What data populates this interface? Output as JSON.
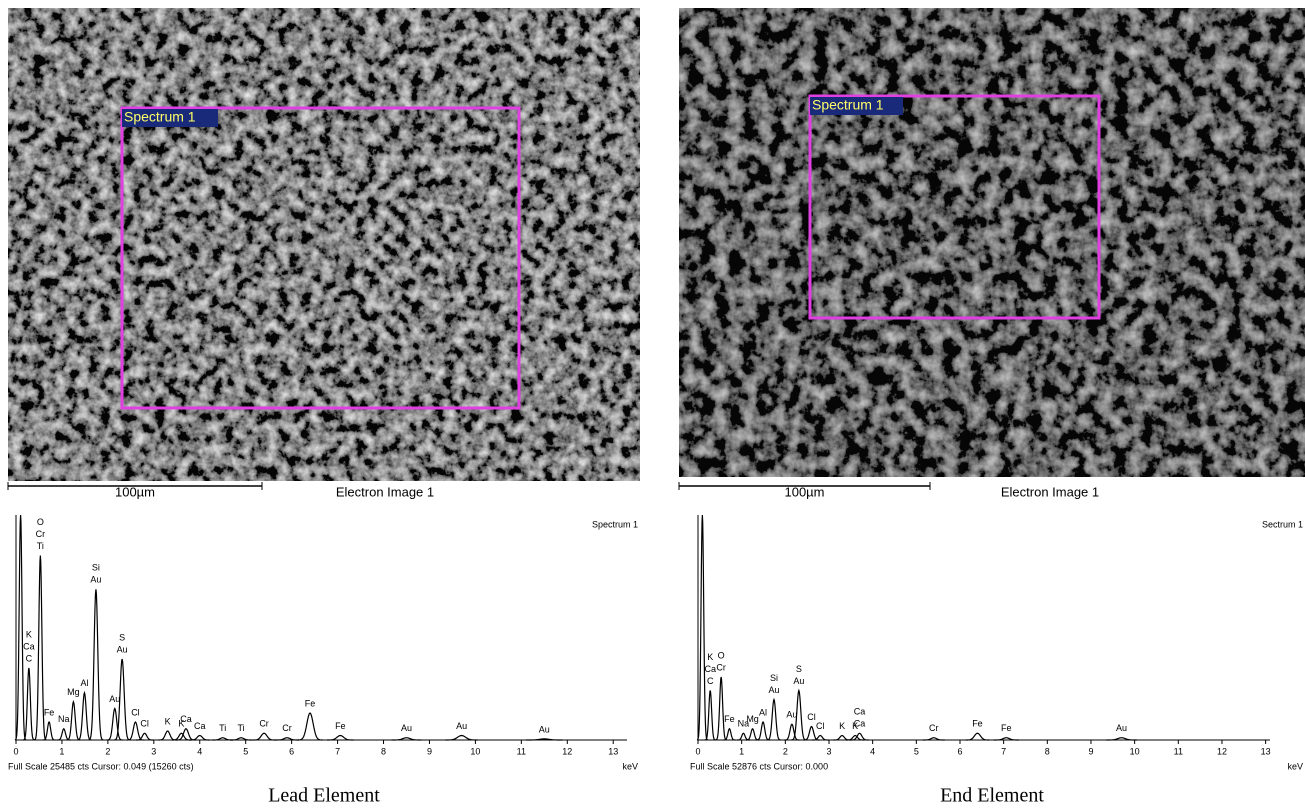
{
  "chart_data": [
    {
      "type": "spectrum",
      "caption": "Lead Element",
      "image_label": "Electron Image 1",
      "scale_label": "100µm",
      "region_label": "Spectrum 1",
      "title": "Spectrum 1",
      "footer": "Full Scale 25485 cts Cursor: 0.049 (15260 cts)",
      "xlabel": "keV",
      "xlim": [
        0,
        13.3
      ],
      "xticks": [
        0,
        1,
        2,
        3,
        4,
        5,
        6,
        7,
        8,
        9,
        10,
        11,
        12,
        13
      ],
      "ylim": [
        0,
        100
      ],
      "x": [
        0.1,
        0.28,
        0.53,
        0.72,
        1.04,
        1.25,
        1.49,
        1.74,
        2.15,
        2.31,
        2.6,
        2.8,
        3.3,
        3.6,
        3.7,
        4.0,
        4.5,
        4.9,
        5.4,
        5.9,
        6.4,
        7.06,
        8.5,
        9.7,
        11.5
      ],
      "values": [
        100,
        32,
        82,
        8,
        5,
        17,
        21,
        67,
        14,
        36,
        8,
        3,
        4,
        3,
        5,
        2,
        1,
        1,
        3,
        1,
        12,
        2,
        1,
        2,
        0.5
      ],
      "peak_labels": [
        [],
        [
          "C",
          "Ca",
          "K"
        ],
        [
          "Ti",
          "Cr",
          "O"
        ],
        [
          "Fe"
        ],
        [
          "Na"
        ],
        [
          "Mg"
        ],
        [
          "Al"
        ],
        [
          "Au",
          "Si"
        ],
        [
          "Au"
        ],
        [
          "Au",
          "S"
        ],
        [
          "Cl"
        ],
        [
          "Cl"
        ],
        [
          "K"
        ],
        [
          "K"
        ],
        [
          "Ca"
        ],
        [
          "Ca"
        ],
        [
          "Ti"
        ],
        [
          "Ti"
        ],
        [
          "Cr"
        ],
        [
          "Cr"
        ],
        [
          "Fe"
        ],
        [
          "Fe"
        ],
        [
          "Au"
        ],
        [
          "Au"
        ],
        [
          "Au"
        ]
      ],
      "color": "#000000"
    },
    {
      "type": "spectrum",
      "caption": "End Element",
      "image_label": "Electron Image 1",
      "scale_label": "100µm",
      "region_label": "Spectrum 1",
      "title": "Sectrum 1",
      "footer": "Full Scale 52876 cts Cursor: 0.000",
      "xlabel": "keV",
      "xlim": [
        0,
        13.1
      ],
      "xticks": [
        0,
        1,
        2,
        3,
        4,
        5,
        6,
        7,
        8,
        9,
        10,
        11,
        12,
        13
      ],
      "ylim": [
        0,
        100
      ],
      "x": [
        0.1,
        0.28,
        0.53,
        0.72,
        1.04,
        1.25,
        1.49,
        1.74,
        2.15,
        2.31,
        2.6,
        2.8,
        3.3,
        3.6,
        3.7,
        5.4,
        6.4,
        7.06,
        9.7
      ],
      "values": [
        100,
        22,
        28,
        5,
        3,
        5,
        8,
        18,
        7,
        22,
        6,
        2,
        2,
        2,
        3,
        1,
        3,
        1,
        1
      ],
      "peak_labels": [
        [],
        [
          "C",
          "Ca",
          "K"
        ],
        [
          "Cr",
          "O"
        ],
        [
          "Fe"
        ],
        [
          "Na"
        ],
        [
          "Mg"
        ],
        [
          "Al"
        ],
        [
          "Au",
          "Si"
        ],
        [
          "Au"
        ],
        [
          "Au",
          "S"
        ],
        [
          "Cl"
        ],
        [
          "Cl"
        ],
        [
          "K"
        ],
        [
          "K"
        ],
        [
          "Ca",
          "Ca"
        ],
        [
          "Cr"
        ],
        [
          "Fe"
        ],
        [
          "Fe"
        ],
        [
          "Au"
        ]
      ],
      "color": "#000000"
    }
  ]
}
